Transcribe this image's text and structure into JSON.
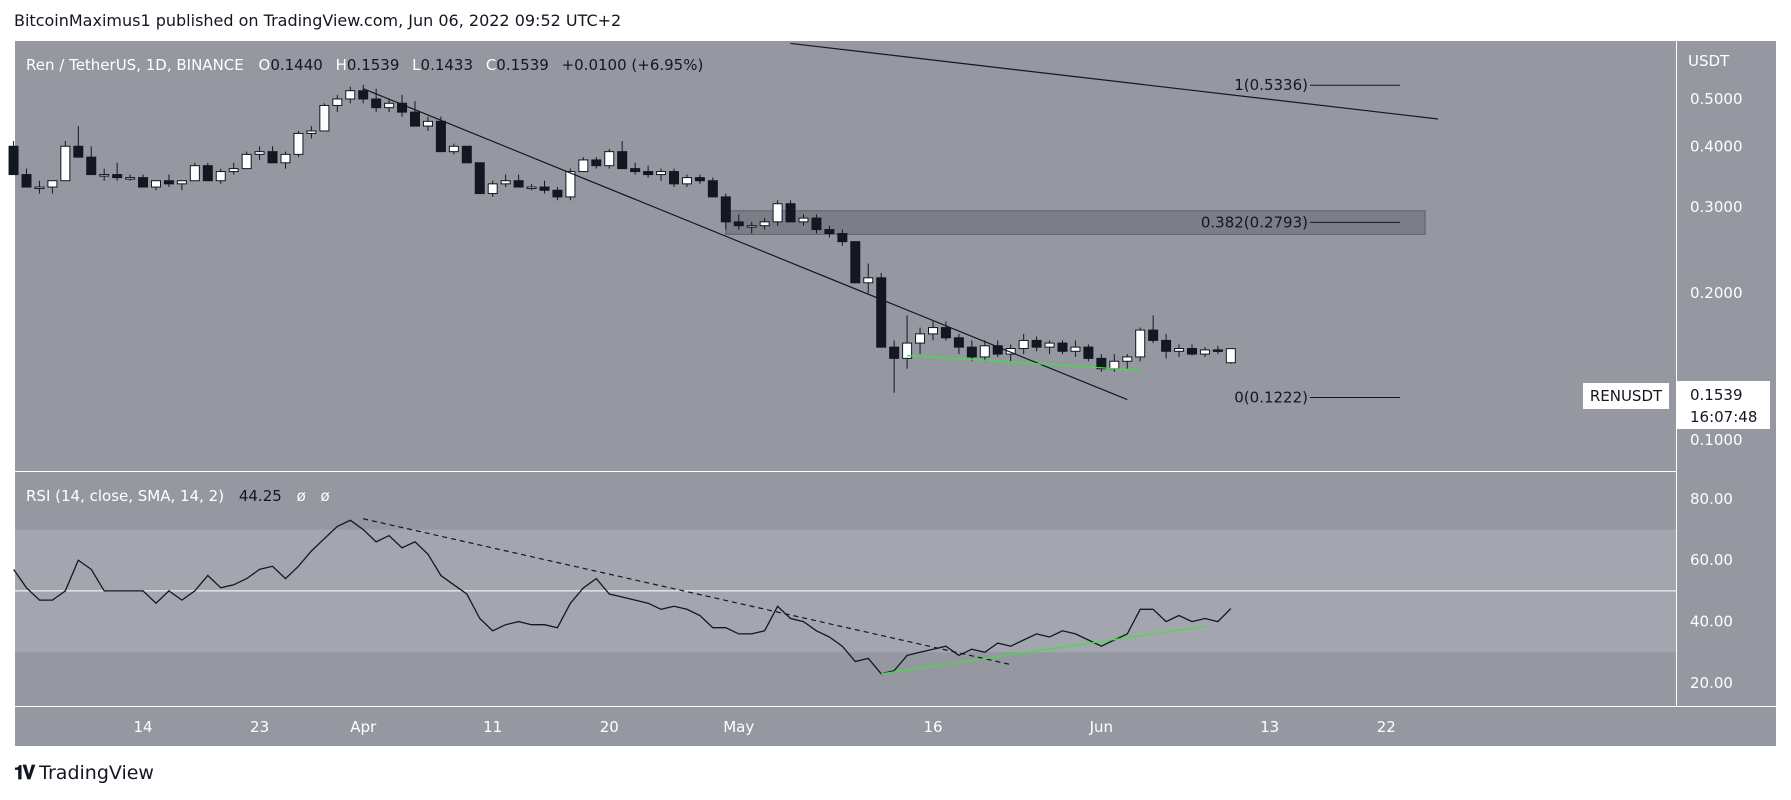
{
  "header": "BitcoinMaximus1 published on TradingView.com, Jun 06, 2022 09:52 UTC+2",
  "footer": {
    "brand": "TradingView",
    "logo_icon": "tradingview-logo-icon"
  },
  "chart_data": [
    {
      "type": "candlestick",
      "legend": {
        "pair": "Ren / TetherUS, 1D, BINANCE",
        "o_label": "O",
        "o": "0.1440",
        "h_label": "H",
        "h": "0.1539",
        "l_label": "L",
        "l": "0.1433",
        "c_label": "C",
        "c": "0.1539",
        "change": "+0.0100 (+6.95%)"
      },
      "axis_currency": "USDT",
      "y_scale": "log",
      "y_ticks": [
        {
          "v": 0.5,
          "label": "0.5000"
        },
        {
          "v": 0.4,
          "label": "0.4000"
        },
        {
          "v": 0.3,
          "label": "0.3000"
        },
        {
          "v": 0.2,
          "label": "0.2000"
        },
        {
          "v": 0.1,
          "label": "0.1000"
        }
      ],
      "price_tag": {
        "symbol": "RENUSDT",
        "price": "0.1539",
        "countdown": "16:07:48"
      },
      "candles_start_index": -1,
      "candles": [
        [
          0.4,
          0.41,
          0.35,
          0.35
        ],
        [
          0.35,
          0.36,
          0.33,
          0.33
        ],
        [
          0.33,
          0.34,
          0.32,
          0.33
        ],
        [
          0.33,
          0.34,
          0.32,
          0.34
        ],
        [
          0.34,
          0.41,
          0.34,
          0.4
        ],
        [
          0.4,
          0.44,
          0.38,
          0.38
        ],
        [
          0.38,
          0.4,
          0.35,
          0.35
        ],
        [
          0.35,
          0.36,
          0.34,
          0.35
        ],
        [
          0.35,
          0.37,
          0.34,
          0.345
        ],
        [
          0.345,
          0.35,
          0.34,
          0.345
        ],
        [
          0.345,
          0.35,
          0.33,
          0.33
        ],
        [
          0.33,
          0.34,
          0.325,
          0.34
        ],
        [
          0.34,
          0.35,
          0.33,
          0.335
        ],
        [
          0.335,
          0.34,
          0.325,
          0.34
        ],
        [
          0.34,
          0.37,
          0.34,
          0.365
        ],
        [
          0.365,
          0.37,
          0.34,
          0.34
        ],
        [
          0.34,
          0.36,
          0.335,
          0.355
        ],
        [
          0.355,
          0.37,
          0.35,
          0.36
        ],
        [
          0.36,
          0.39,
          0.36,
          0.385
        ],
        [
          0.385,
          0.4,
          0.375,
          0.39
        ],
        [
          0.39,
          0.4,
          0.37,
          0.37
        ],
        [
          0.37,
          0.39,
          0.36,
          0.385
        ],
        [
          0.385,
          0.43,
          0.38,
          0.425
        ],
        [
          0.425,
          0.44,
          0.415,
          0.43
        ],
        [
          0.43,
          0.49,
          0.43,
          0.485
        ],
        [
          0.485,
          0.51,
          0.47,
          0.5
        ],
        [
          0.5,
          0.53,
          0.49,
          0.52
        ],
        [
          0.52,
          0.535,
          0.49,
          0.5
        ],
        [
          0.5,
          0.525,
          0.47,
          0.48
        ],
        [
          0.48,
          0.5,
          0.47,
          0.49
        ],
        [
          0.49,
          0.51,
          0.46,
          0.47
        ],
        [
          0.47,
          0.495,
          0.44,
          0.44
        ],
        [
          0.44,
          0.46,
          0.43,
          0.45
        ],
        [
          0.45,
          0.46,
          0.39,
          0.39
        ],
        [
          0.39,
          0.405,
          0.385,
          0.4
        ],
        [
          0.4,
          0.4,
          0.37,
          0.37
        ],
        [
          0.37,
          0.37,
          0.32,
          0.32
        ],
        [
          0.32,
          0.34,
          0.315,
          0.335
        ],
        [
          0.335,
          0.35,
          0.33,
          0.34
        ],
        [
          0.34,
          0.35,
          0.33,
          0.33
        ],
        [
          0.33,
          0.335,
          0.325,
          0.33
        ],
        [
          0.33,
          0.34,
          0.32,
          0.325
        ],
        [
          0.325,
          0.33,
          0.31,
          0.315
        ],
        [
          0.315,
          0.36,
          0.31,
          0.355
        ],
        [
          0.355,
          0.38,
          0.355,
          0.375
        ],
        [
          0.375,
          0.38,
          0.36,
          0.365
        ],
        [
          0.365,
          0.395,
          0.36,
          0.39
        ],
        [
          0.39,
          0.41,
          0.36,
          0.36
        ],
        [
          0.36,
          0.37,
          0.35,
          0.355
        ],
        [
          0.355,
          0.365,
          0.345,
          0.35
        ],
        [
          0.35,
          0.36,
          0.34,
          0.355
        ],
        [
          0.355,
          0.36,
          0.33,
          0.335
        ],
        [
          0.335,
          0.35,
          0.33,
          0.345
        ],
        [
          0.345,
          0.35,
          0.335,
          0.34
        ],
        [
          0.34,
          0.345,
          0.315,
          0.315
        ],
        [
          0.315,
          0.32,
          0.27,
          0.28
        ],
        [
          0.28,
          0.29,
          0.27,
          0.275
        ],
        [
          0.275,
          0.28,
          0.265,
          0.275
        ],
        [
          0.275,
          0.285,
          0.27,
          0.28
        ],
        [
          0.28,
          0.31,
          0.275,
          0.305
        ],
        [
          0.305,
          0.31,
          0.28,
          0.28
        ],
        [
          0.28,
          0.29,
          0.275,
          0.285
        ],
        [
          0.285,
          0.29,
          0.265,
          0.27
        ],
        [
          0.27,
          0.275,
          0.26,
          0.265
        ],
        [
          0.265,
          0.27,
          0.25,
          0.255
        ],
        [
          0.255,
          0.255,
          0.21,
          0.21
        ],
        [
          0.21,
          0.23,
          0.2,
          0.215
        ],
        [
          0.215,
          0.22,
          0.155,
          0.155
        ],
        [
          0.155,
          0.16,
          0.125,
          0.147
        ],
        [
          0.147,
          0.18,
          0.14,
          0.158
        ],
        [
          0.158,
          0.17,
          0.15,
          0.165
        ],
        [
          0.165,
          0.175,
          0.16,
          0.17
        ],
        [
          0.17,
          0.175,
          0.16,
          0.162
        ],
        [
          0.162,
          0.165,
          0.15,
          0.155
        ],
        [
          0.155,
          0.16,
          0.145,
          0.148
        ],
        [
          0.148,
          0.16,
          0.145,
          0.156
        ],
        [
          0.156,
          0.16,
          0.148,
          0.15
        ],
        [
          0.15,
          0.157,
          0.145,
          0.154
        ],
        [
          0.154,
          0.165,
          0.15,
          0.16
        ],
        [
          0.16,
          0.163,
          0.152,
          0.155
        ],
        [
          0.155,
          0.16,
          0.15,
          0.158
        ],
        [
          0.158,
          0.16,
          0.15,
          0.152
        ],
        [
          0.152,
          0.16,
          0.148,
          0.155
        ],
        [
          0.155,
          0.157,
          0.145,
          0.147
        ],
        [
          0.147,
          0.15,
          0.138,
          0.14
        ],
        [
          0.14,
          0.15,
          0.138,
          0.145
        ],
        [
          0.145,
          0.15,
          0.14,
          0.148
        ],
        [
          0.148,
          0.17,
          0.145,
          0.168
        ],
        [
          0.168,
          0.18,
          0.158,
          0.16
        ],
        [
          0.16,
          0.165,
          0.147,
          0.152
        ],
        [
          0.152,
          0.157,
          0.148,
          0.154
        ],
        [
          0.154,
          0.157,
          0.149,
          0.15
        ],
        [
          0.15,
          0.155,
          0.148,
          0.153
        ],
        [
          0.153,
          0.156,
          0.15,
          0.152
        ],
        [
          0.144,
          0.1539,
          0.1433,
          0.1539
        ]
      ],
      "trendlines": [
        {
          "name": "descending-resistance-line",
          "from": {
            "i": 26,
            "p": 0.525
          },
          "to": {
            "i": 85,
            "p": 0.121
          }
        },
        {
          "name": "long-term-resistance-line",
          "from": {
            "i": 59,
            "p": 0.65
          },
          "to": {
            "i": 109,
            "p": 0.455
          }
        }
      ],
      "support_line": {
        "from": {
          "i": 68,
          "p": 0.149
        },
        "to": {
          "i": 86,
          "p": 0.139
        }
      },
      "resistance_zone": {
        "from_i": 54,
        "to_i": 108,
        "low": 0.264,
        "high": 0.295
      },
      "fib_levels": [
        {
          "ratio": "1",
          "price": "0.5336",
          "p": 0.5336
        },
        {
          "ratio": "0.382",
          "price": "0.2793",
          "p": 0.2793
        },
        {
          "ratio": "0",
          "price": "0.1222",
          "p": 0.1222
        }
      ],
      "x_ticks": [
        {
          "i": 9,
          "label": "14"
        },
        {
          "i": 18,
          "label": "23"
        },
        {
          "i": 26,
          "label": "Apr"
        },
        {
          "i": 36,
          "label": "11"
        },
        {
          "i": 45,
          "label": "20"
        },
        {
          "i": 55,
          "label": "May"
        },
        {
          "i": 70,
          "label": "16"
        },
        {
          "i": 83,
          "label": "Jun"
        },
        {
          "i": 96,
          "label": "13"
        },
        {
          "i": 105,
          "label": "22"
        }
      ]
    },
    {
      "type": "line",
      "legend": {
        "label": "RSI (14, close, SMA, 14, 2)",
        "value": "44.25",
        "extra1": "ø",
        "extra2": "ø"
      },
      "y_ticks": [
        {
          "v": 80,
          "label": "80.00"
        },
        {
          "v": 60,
          "label": "60.00"
        },
        {
          "v": 40,
          "label": "40.00"
        },
        {
          "v": 20,
          "label": "20.00"
        }
      ],
      "bands": {
        "upper": 70,
        "lower": 30,
        "mid": 50
      },
      "values": [
        57,
        51,
        47,
        47,
        50,
        60,
        57,
        50,
        50,
        50,
        50,
        46,
        50,
        47,
        50,
        55,
        51,
        52,
        54,
        57,
        58,
        54,
        58,
        63,
        67,
        71,
        73,
        70,
        66,
        68,
        64,
        66,
        62,
        55,
        52,
        49,
        41,
        37,
        39,
        40,
        39,
        39,
        38,
        46,
        51,
        54,
        49,
        48,
        47,
        46,
        44,
        45,
        44,
        42,
        38,
        38,
        36,
        36,
        37,
        45,
        41,
        40,
        37,
        35,
        32,
        27,
        28,
        23,
        24,
        29,
        30,
        31,
        32,
        29,
        31,
        30,
        33,
        32,
        34,
        36,
        35,
        37,
        36,
        34,
        32,
        34,
        36,
        44,
        44,
        40,
        42,
        40,
        41,
        40,
        44.25
      ],
      "trendlines": [
        {
          "name": "rsi-descending-dashed-line",
          "dashed": true,
          "from": {
            "i": 26,
            "v": 73.5
          },
          "to": {
            "i": 76,
            "v": 26
          }
        },
        {
          "name": "rsi-ascending-support-line",
          "dashed": false,
          "from": {
            "i": 66,
            "v": 23
          },
          "to": {
            "i": 91,
            "v": 38.5
          }
        }
      ]
    }
  ]
}
